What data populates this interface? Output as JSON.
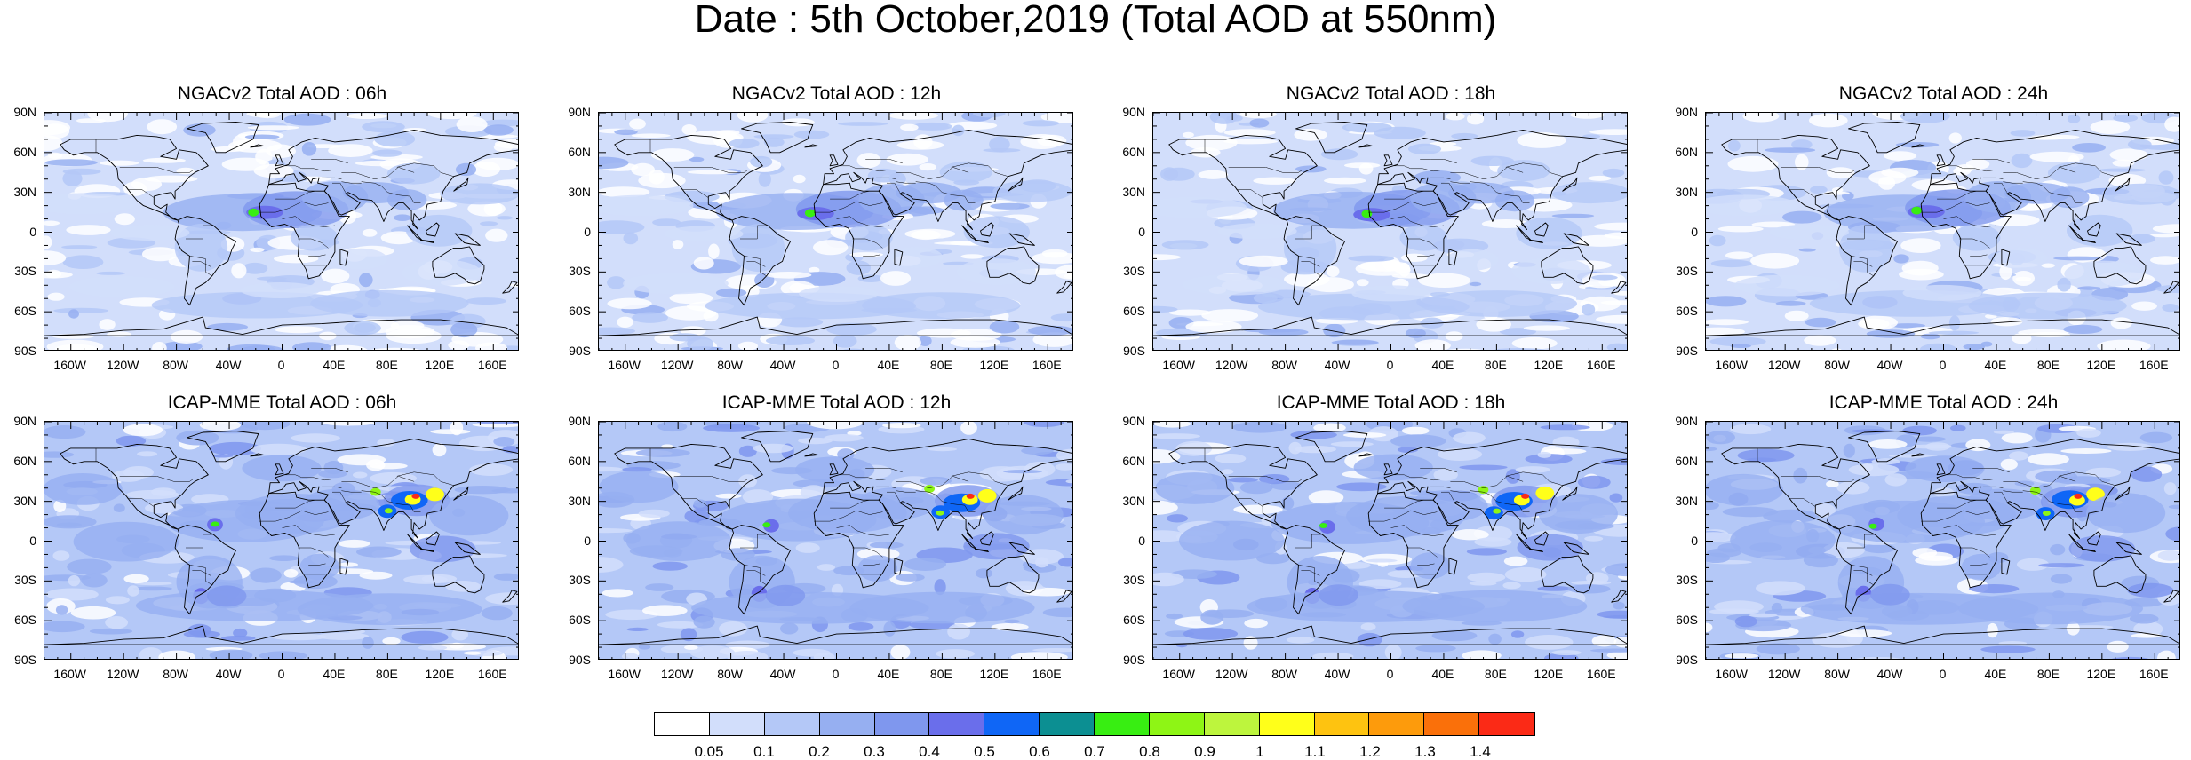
{
  "title": "Date : 5th October,2019 (Total AOD at 550nm)",
  "panels": [
    {
      "title": "NGACv2 Total AOD : 06h",
      "model": "ngac"
    },
    {
      "title": "NGACv2 Total AOD : 12h",
      "model": "ngac"
    },
    {
      "title": "NGACv2 Total AOD : 18h",
      "model": "ngac"
    },
    {
      "title": "NGACv2 Total AOD : 24h",
      "model": "ngac"
    },
    {
      "title": "ICAP-MME Total AOD : 06h",
      "model": "icap"
    },
    {
      "title": "ICAP-MME Total AOD : 12h",
      "model": "icap"
    },
    {
      "title": "ICAP-MME Total AOD : 18h",
      "model": "icap"
    },
    {
      "title": "ICAP-MME Total AOD : 24h",
      "model": "icap"
    }
  ],
  "lat_labels": [
    "90N",
    "60N",
    "30N",
    "0",
    "30S",
    "60S",
    "90S"
  ],
  "lon_labels": [
    "160W",
    "120W",
    "80W",
    "40W",
    "0",
    "40E",
    "80E",
    "120E",
    "160E"
  ],
  "colorbar": {
    "colors": [
      "#ffffff",
      "#d2defb",
      "#b4c8f7",
      "#96aff1",
      "#7f97ee",
      "#6a6eeb",
      "#0f66f6",
      "#0c8f92",
      "#38ee12",
      "#8ef515",
      "#bdf53d",
      "#ffff1a",
      "#fec310",
      "#fd9b0c",
      "#fa700a",
      "#fb2a16"
    ],
    "labels": [
      "0.05",
      "0.1",
      "0.2",
      "0.3",
      "0.4",
      "0.5",
      "0.6",
      "0.7",
      "0.8",
      "0.9",
      "1",
      "1.1",
      "1.2",
      "1.3",
      "1.4"
    ]
  }
}
